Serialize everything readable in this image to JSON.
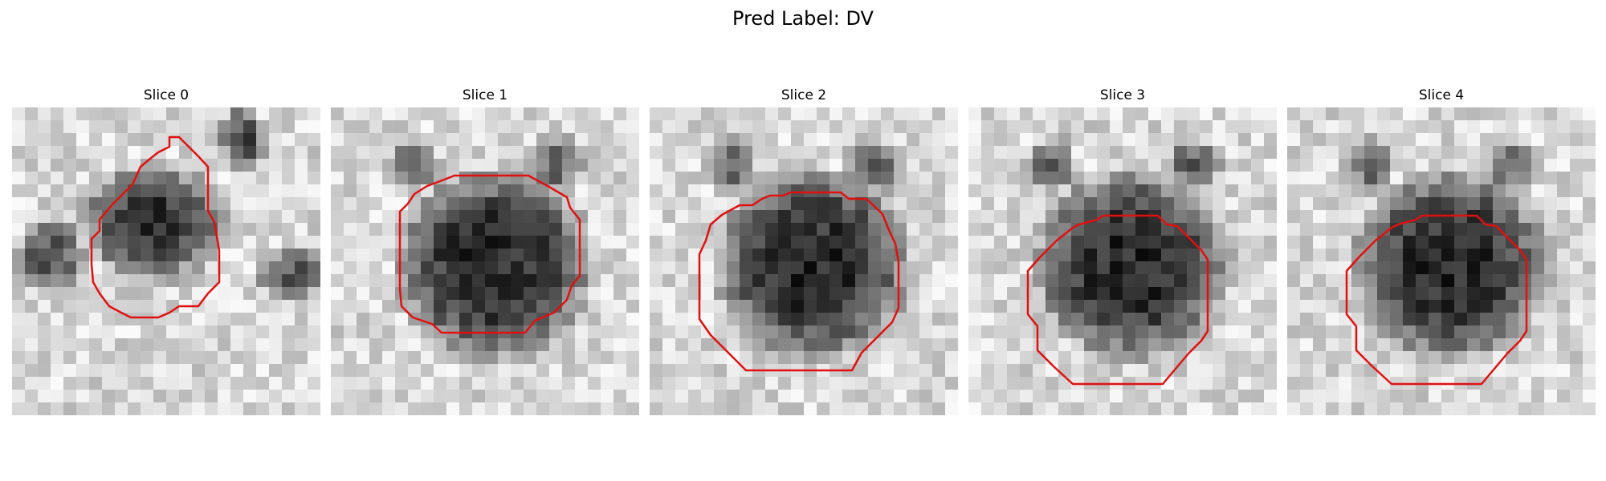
{
  "figure": {
    "suptitle": "Pred Label: DV",
    "contour_color": "#e01010",
    "panels": [
      {
        "title": "Slice 0",
        "blob": "irregular"
      },
      {
        "title": "Slice 1",
        "blob": "round"
      },
      {
        "title": "Slice 2",
        "blob": "round"
      },
      {
        "title": "Slice 3",
        "blob": "round"
      },
      {
        "title": "Slice 4",
        "blob": "round"
      }
    ]
  }
}
